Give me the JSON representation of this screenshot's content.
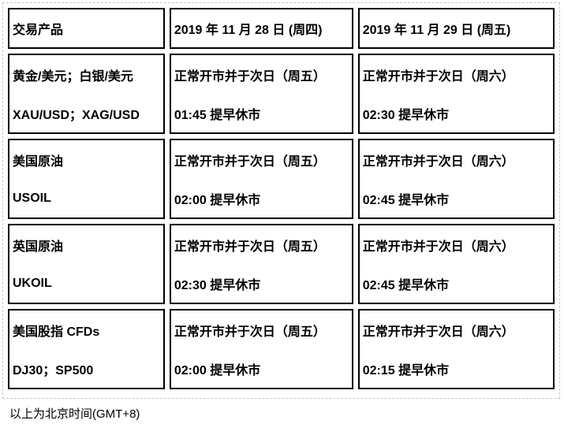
{
  "table": {
    "columns": [
      "交易产品",
      "2019 年 11 月 28 日 (周四)",
      "2019 年 11 月 29 日 (周五)"
    ],
    "rows": [
      {
        "product": [
          "黄金/美元；白银/美元",
          "XAU/USD；XAG/USD"
        ],
        "thu": [
          "正常开市并于次日（周五）",
          "01:45 提早休市"
        ],
        "fri": [
          "正常开市并于次日（周六）",
          "02:30 提早休市"
        ]
      },
      {
        "product": [
          "美国原油",
          "USOIL"
        ],
        "thu": [
          "正常开市并于次日（周五）",
          "02:00 提早休市"
        ],
        "fri": [
          "正常开市并于次日（周六）",
          "02:45 提早休市"
        ]
      },
      {
        "product": [
          "英国原油",
          "UKOIL"
        ],
        "thu": [
          "正常开市并于次日（周五）",
          "02:30 提早休市"
        ],
        "fri": [
          "正常开市并于次日（周六）",
          "02:45 提早休市"
        ]
      },
      {
        "product": [
          "美国股指 CFDs",
          "DJ30；SP500"
        ],
        "thu": [
          "正常开市并于次日（周五）",
          "02:00 提早休市"
        ],
        "fri": [
          "正常开市并于次日（周六）",
          "02:15 提早休市"
        ]
      }
    ]
  },
  "footer": {
    "note": "以上为北京时间(GMT+8)"
  },
  "colors": {
    "cell_border": "#000000",
    "outer_dashed_border": "#c8c8c8",
    "text": "#000000",
    "background": "#ffffff"
  }
}
